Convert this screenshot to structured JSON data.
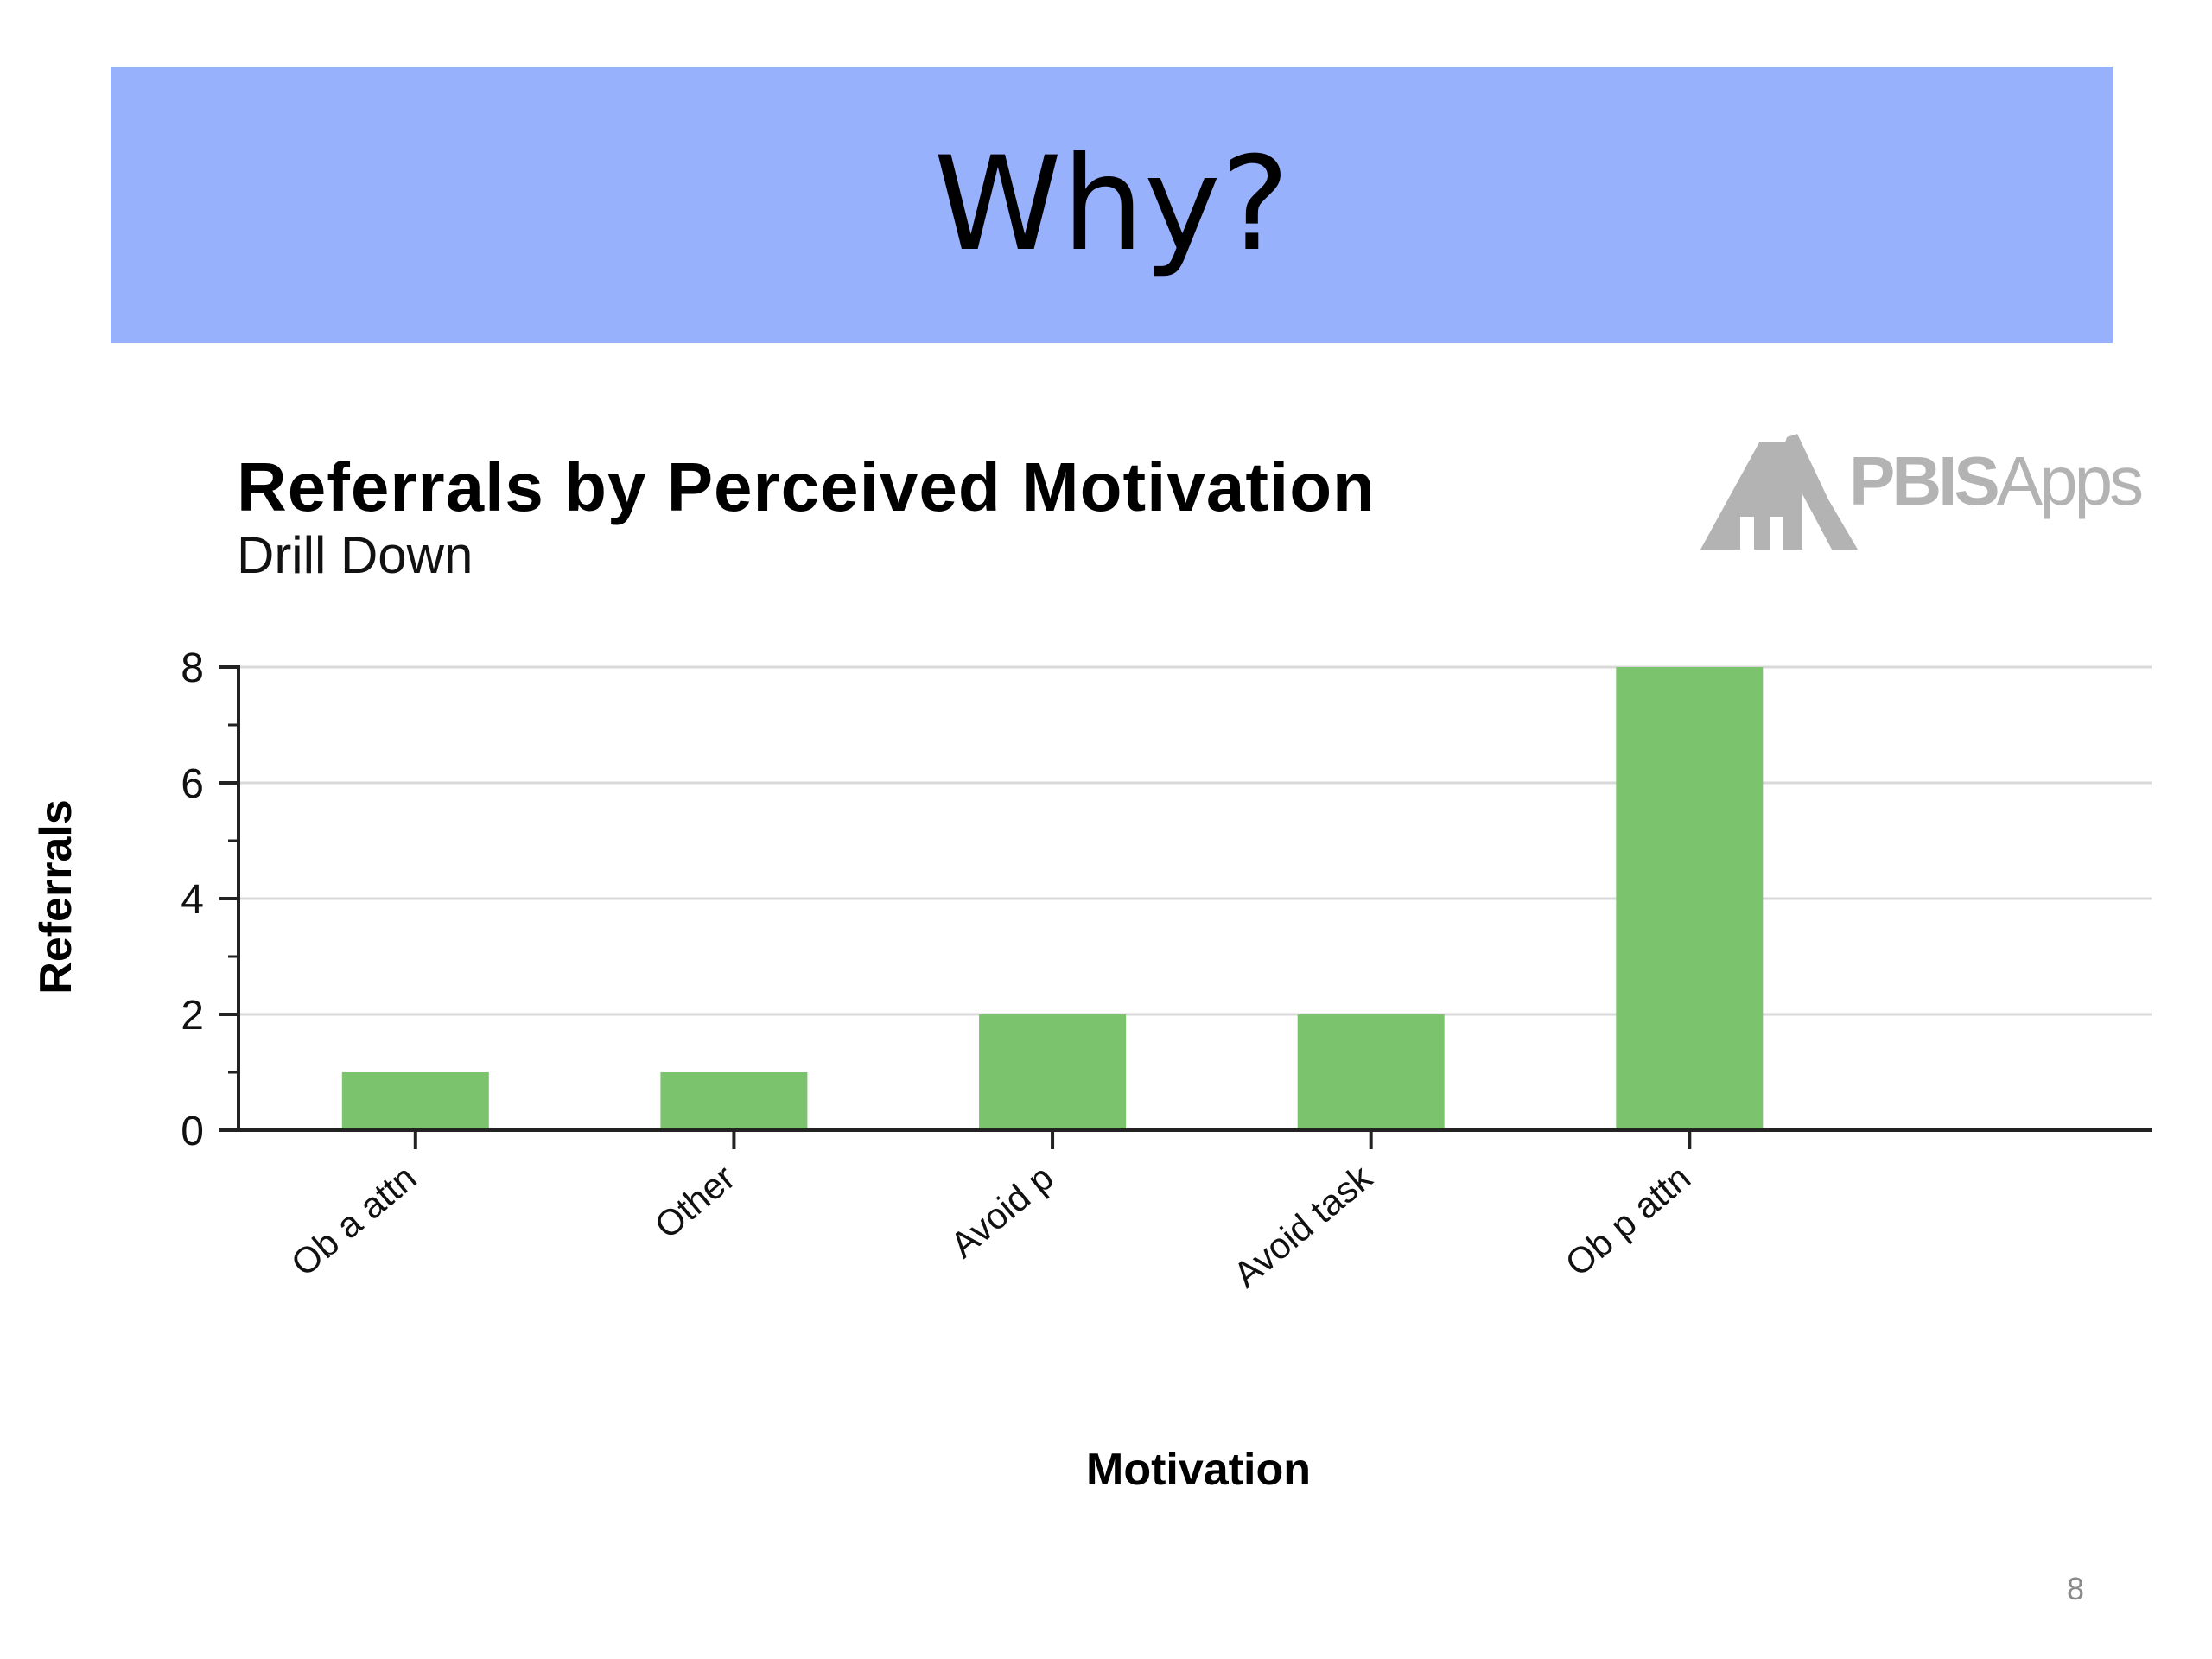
{
  "slide": {
    "title": "Why?",
    "page_number": "8",
    "banner_color": "#98b1fd"
  },
  "logo": {
    "text_bold": "PBIS",
    "text_light": "Apps",
    "color": "#b3b3b3"
  },
  "chart_data": {
    "type": "bar",
    "title": "Referrals by Perceived Motivation",
    "subtitle": "Drill Down",
    "xlabel": "Motivation",
    "ylabel": "Referrals",
    "categories": [
      "Ob a attn",
      "Other",
      "Avoid p",
      "Avoid task",
      "Ob p attn"
    ],
    "values": [
      1,
      1,
      2,
      2,
      8
    ],
    "ylim": [
      0,
      8
    ],
    "yticks": [
      0,
      2,
      4,
      6,
      8
    ],
    "grid": true,
    "legend": "none",
    "bar_color": "#7cc36d"
  }
}
